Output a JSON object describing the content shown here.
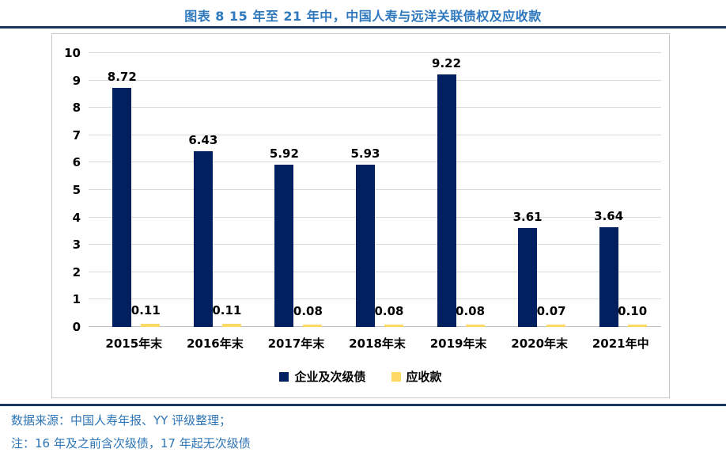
{
  "title": "图表 8 15 年至 21 年中，中国人寿与远洋关联债权及应收款",
  "chart_data": {
    "type": "bar",
    "title": "图表 8 15 年至 21 年中，中国人寿与远洋关联债权及应收款",
    "categories": [
      "2015年末",
      "2016年末",
      "2017年末",
      "2018年末",
      "2019年末",
      "2020年末",
      "2021年中"
    ],
    "series": [
      {
        "name": "企业及次级债",
        "color": "#002060",
        "values": [
          8.72,
          6.43,
          5.92,
          5.93,
          9.22,
          3.61,
          3.64
        ]
      },
      {
        "name": "应收款",
        "color": "#FFD966",
        "values": [
          0.11,
          0.11,
          0.08,
          0.08,
          0.08,
          0.07,
          0.1
        ]
      }
    ],
    "ylim": [
      0,
      10
    ],
    "ytick_step": 1,
    "grid": true,
    "legend_position": "bottom",
    "xlabel": "",
    "ylabel": ""
  },
  "footer": {
    "source": "数据来源：中国人寿年报、YY 评级整理；",
    "note": "注：16 年及之前含次级债，17 年起无次级债"
  },
  "colors": {
    "title_text": "#2E78BE",
    "rule": "#17375E",
    "grid": "#D9D9D9",
    "bar_primary": "#002060",
    "bar_secondary": "#FFD966",
    "footer_text": "#2E75B6"
  }
}
